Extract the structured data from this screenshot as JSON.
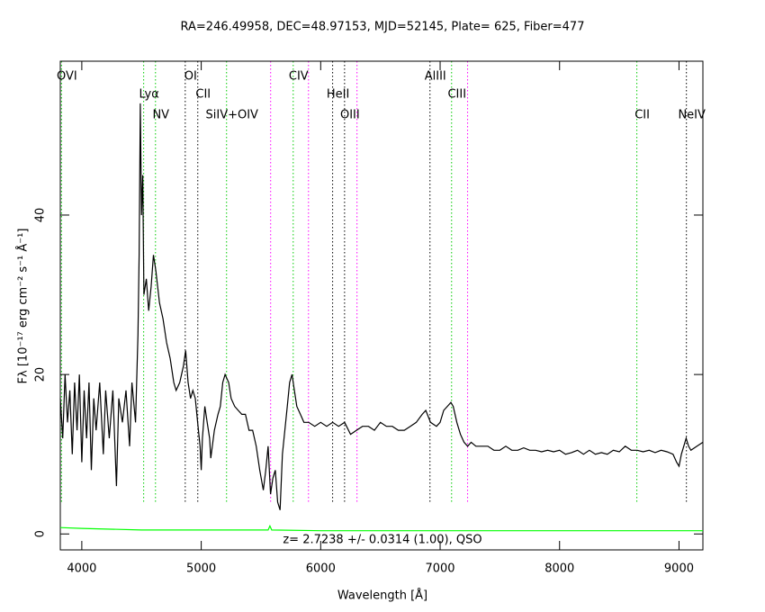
{
  "chart_data": {
    "type": "line",
    "title": "RA=246.49958, DEC=48.97153, MJD=52145, Plate=  625, Fiber=477",
    "x_label": "Wavelength [Å]",
    "y_label": "Fλ [10⁻¹⁷ erg cm⁻² s⁻¹ Å⁻¹]",
    "annotation": "z= 2.7238 +/- 0.0314 (1.00), QSO",
    "xlim": [
      3820,
      9200
    ],
    "ylim": [
      -2,
      59.3
    ],
    "xticks": [
      4000,
      5000,
      6000,
      7000,
      8000,
      9000
    ],
    "yticks": [
      0,
      20,
      40
    ],
    "series": [
      {
        "name": null,
        "color": "#000000",
        "x": [
          3820,
          3840,
          3860,
          3880,
          3900,
          3920,
          3940,
          3960,
          3980,
          4000,
          4020,
          4040,
          4060,
          4080,
          4100,
          4120,
          4150,
          4180,
          4200,
          4230,
          4260,
          4290,
          4310,
          4340,
          4370,
          4400,
          4420,
          4450,
          4470,
          4480,
          4490,
          4500,
          4510,
          4520,
          4540,
          4560,
          4580,
          4600,
          4620,
          4650,
          4680,
          4710,
          4740,
          4770,
          4790,
          4820,
          4850,
          4870,
          4890,
          4910,
          4930,
          4950,
          4970,
          4990,
          5000,
          5010,
          5030,
          5050,
          5070,
          5080,
          5110,
          5140,
          5160,
          5180,
          5200,
          5230,
          5250,
          5280,
          5310,
          5340,
          5370,
          5400,
          5430,
          5460,
          5490,
          5520,
          5540,
          5560,
          5580,
          5600,
          5620,
          5640,
          5660,
          5680,
          5700,
          5720,
          5740,
          5760,
          5780,
          5800,
          5830,
          5860,
          5900,
          5950,
          6000,
          6050,
          6100,
          6150,
          6200,
          6250,
          6300,
          6350,
          6400,
          6450,
          6500,
          6550,
          6600,
          6650,
          6700,
          6750,
          6800,
          6850,
          6880,
          6920,
          6970,
          7000,
          7030,
          7060,
          7090,
          7110,
          7140,
          7170,
          7200,
          7230,
          7260,
          7300,
          7350,
          7400,
          7450,
          7500,
          7550,
          7600,
          7650,
          7700,
          7750,
          7800,
          7850,
          7900,
          7950,
          8000,
          8050,
          8100,
          8150,
          8200,
          8250,
          8300,
          8350,
          8400,
          8450,
          8500,
          8550,
          8600,
          8650,
          8700,
          8750,
          8800,
          8850,
          8900,
          8950,
          8980,
          9000,
          9020,
          9060,
          9080,
          9100,
          9150,
          9200
        ],
        "values": [
          17,
          12,
          20,
          14,
          18,
          10,
          19,
          13,
          20,
          9,
          18,
          12,
          19,
          8,
          17,
          13,
          19,
          10,
          18,
          12,
          18,
          6,
          17,
          14,
          18,
          11,
          19,
          14,
          25,
          35,
          54,
          40,
          45,
          30,
          32,
          28,
          31,
          35,
          33,
          29,
          27,
          24,
          22,
          19,
          18,
          19,
          21,
          23,
          19,
          17,
          18,
          17,
          14,
          11,
          8,
          12,
          16,
          14,
          12,
          9.5,
          13,
          15,
          16,
          19,
          20,
          19,
          17,
          16,
          15.5,
          15,
          15,
          13,
          13,
          11,
          8,
          5.5,
          8,
          11,
          5,
          7,
          8,
          4,
          3,
          10,
          13,
          16,
          19,
          20,
          18,
          16,
          15,
          14,
          14,
          13.5,
          14,
          13.5,
          14,
          13.5,
          14,
          12.5,
          13,
          13.5,
          13.5,
          13,
          14,
          13.5,
          13.5,
          13,
          13,
          13.5,
          14,
          15,
          15.5,
          14,
          13.5,
          14,
          15.5,
          16,
          16.5,
          16,
          14,
          12.5,
          11.5,
          11,
          11.5,
          11,
          11,
          11,
          10.5,
          10.5,
          11,
          10.5,
          10.5,
          10.8,
          10.5,
          10.5,
          10.3,
          10.5,
          10.3,
          10.5,
          10,
          10.2,
          10.5,
          10,
          10.5,
          10,
          10.2,
          10,
          10.5,
          10.3,
          11,
          10.5,
          10.5,
          10.3,
          10.5,
          10.2,
          10.5,
          10.3,
          10,
          9,
          8.5,
          10,
          12,
          11,
          10.5,
          11,
          11.5
        ]
      },
      {
        "name": null,
        "color": "#00ff00",
        "x": [
          3820,
          4000,
          4500,
          5000,
          5560,
          5575,
          5590,
          6000,
          7000,
          8000,
          9000,
          9200
        ],
        "values": [
          0.8,
          0.7,
          0.5,
          0.5,
          0.5,
          1.0,
          0.5,
          0.4,
          0.4,
          0.4,
          0.4,
          0.4
        ]
      }
    ],
    "lines": [
      {
        "x": 3830,
        "label": "OVI",
        "color": "#00cc00"
      },
      {
        "x": 4518,
        "label": "Lyα",
        "color": "#00cc00"
      },
      {
        "x": 4617,
        "label": "NV",
        "color": "#00cc00"
      },
      {
        "x": 4866,
        "label": "OI",
        "color": "#000000"
      },
      {
        "x": 4971,
        "label": "CII",
        "color": "#000000"
      },
      {
        "x": 5212,
        "label": "SiIV+OIV",
        "color": "#00cc00"
      },
      {
        "x": 5581,
        "label": null,
        "color": "#ff00ff"
      },
      {
        "x": 5770,
        "label": "CIV",
        "color": "#00cc00"
      },
      {
        "x": 5898,
        "label": null,
        "color": "#ff00ff"
      },
      {
        "x": 6100,
        "label": "HeII",
        "color": "#000000"
      },
      {
        "x": 6200,
        "label": "OIII",
        "color": "#000000"
      },
      {
        "x": 6304,
        "label": null,
        "color": "#ff00ff"
      },
      {
        "x": 6915,
        "label": "AlIII",
        "color": "#000000"
      },
      {
        "x": 7096,
        "label": "CIII",
        "color": "#00cc00"
      },
      {
        "x": 7230,
        "label": null,
        "color": "#ff00ff"
      },
      {
        "x": 8647,
        "label": "CII",
        "color": "#00cc00"
      },
      {
        "x": 9062,
        "label": "NeIV",
        "color": "#000000"
      }
    ]
  }
}
